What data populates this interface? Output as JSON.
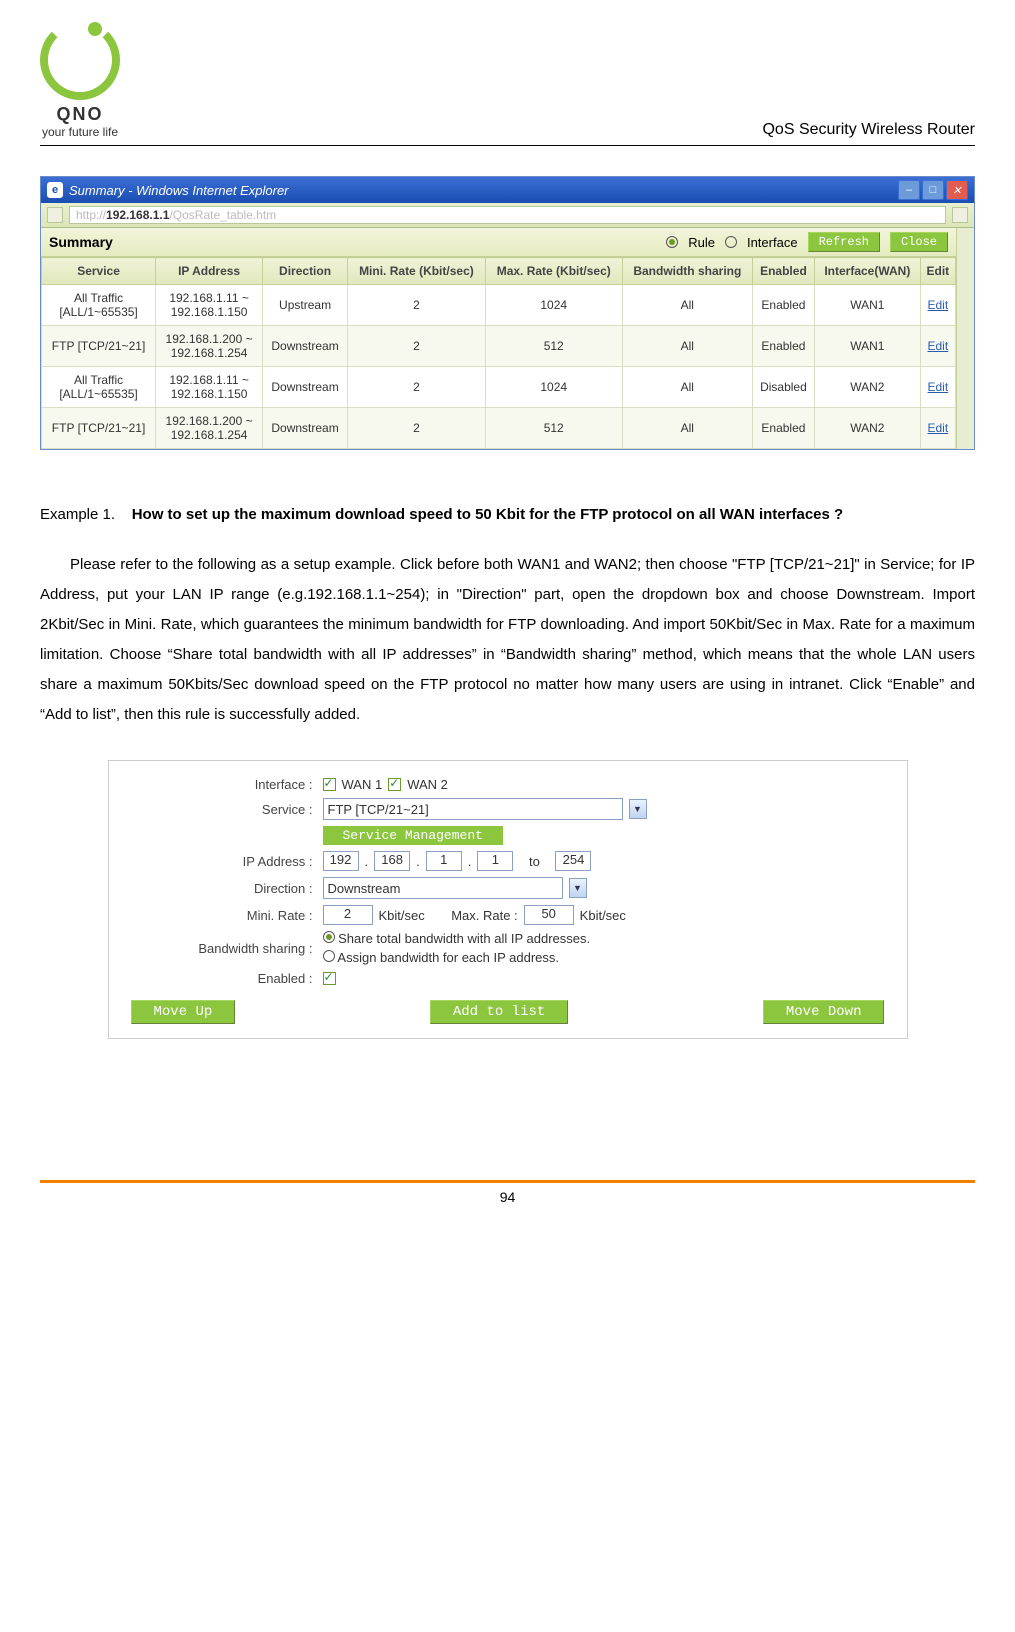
{
  "header": {
    "logo_main": "QNO",
    "logo_sub": "your future life",
    "doc_title": "QoS Security Wireless Router"
  },
  "ie": {
    "title": "Summary - Windows Internet Explorer",
    "url_prefix": "http://",
    "url_ip": "192.168.1.1",
    "url_path": "/QosRate_table.htm",
    "summary": "Summary",
    "rule": "Rule",
    "interface": "Interface",
    "refresh": "Refresh",
    "close": "Close",
    "cols": [
      "Service",
      "IP Address",
      "Direction",
      "Mini. Rate (Kbit/sec)",
      "Max. Rate (Kbit/sec)",
      "Bandwidth sharing",
      "Enabled",
      "Interface(WAN)",
      "Edit"
    ],
    "rows": [
      {
        "service": "All Traffic\n[ALL/1~65535]",
        "ip": "192.168.1.11 ~\n192.168.1.150",
        "dir": "Upstream",
        "min": "2",
        "max": "1024",
        "share": "All",
        "en": "Enabled",
        "wan": "WAN1",
        "edit": "Edit"
      },
      {
        "service": "FTP [TCP/21~21]",
        "ip": "192.168.1.200 ~\n192.168.1.254",
        "dir": "Downstream",
        "min": "2",
        "max": "512",
        "share": "All",
        "en": "Enabled",
        "wan": "WAN1",
        "edit": "Edit"
      },
      {
        "service": "All Traffic\n[ALL/1~65535]",
        "ip": "192.168.1.11 ~\n192.168.1.150",
        "dir": "Downstream",
        "min": "2",
        "max": "1024",
        "share": "All",
        "en": "Disabled",
        "wan": "WAN2",
        "edit": "Edit"
      },
      {
        "service": "FTP [TCP/21~21]",
        "ip": "192.168.1.200 ~\n192.168.1.254",
        "dir": "Downstream",
        "min": "2",
        "max": "512",
        "share": "All",
        "en": "Enabled",
        "wan": "WAN2",
        "edit": "Edit"
      }
    ]
  },
  "text": {
    "example_lead": "Example 1.",
    "example_bold": "How to set up the maximum download speed to 50 Kbit for the FTP protocol on all WAN interfaces ?",
    "body": "Please refer to the following as a setup example. Click before both WAN1 and WAN2; then choose \"FTP [TCP/21~21]\" in Service; for IP Address, put your LAN IP range (e.g.192.168.1.1~254); in \"Direction\" part, open the dropdown box and choose Downstream. Import 2Kbit/Sec in Mini. Rate, which guarantees the minimum bandwidth for FTP downloading. And import 50Kbit/Sec in Max. Rate for a maximum limitation. Choose “Share total bandwidth with all IP addresses” in “Bandwidth sharing” method, which means that the whole LAN users share a maximum 50Kbits/Sec download speed on the FTP protocol no matter how many users are using in intranet. Click “Enable” and “Add to list”, then this rule is successfully added."
  },
  "form": {
    "labels": {
      "interface": "Interface :",
      "service": "Service :",
      "svc_mgmt": "Service Management",
      "ip": "IP Address :",
      "direction": "Direction :",
      "min": "Mini. Rate :",
      "max": "Max. Rate :",
      "unit": "Kbit/sec",
      "bandwidth": "Bandwidth sharing :",
      "enabled": "Enabled  :",
      "to": "to"
    },
    "wan1": "WAN 1",
    "wan2": "WAN 2",
    "service_val": "FTP [TCP/21~21]",
    "ip": {
      "a": "192",
      "b": "168",
      "c": "1",
      "d": "1",
      "e": "254"
    },
    "direction_val": "Downstream",
    "min_val": "2",
    "max_val": "50",
    "share_opt1": "Share total bandwidth with all IP addresses.",
    "share_opt2": "Assign bandwidth for each IP address.",
    "btn_up": "Move Up",
    "btn_add": "Add to list",
    "btn_down": "Move Down"
  },
  "page_num": "94",
  "colors": {
    "green": "#8cc63f",
    "blue_title": "#1a4db0",
    "link": "#2a5db0",
    "orange": "#f08000"
  }
}
